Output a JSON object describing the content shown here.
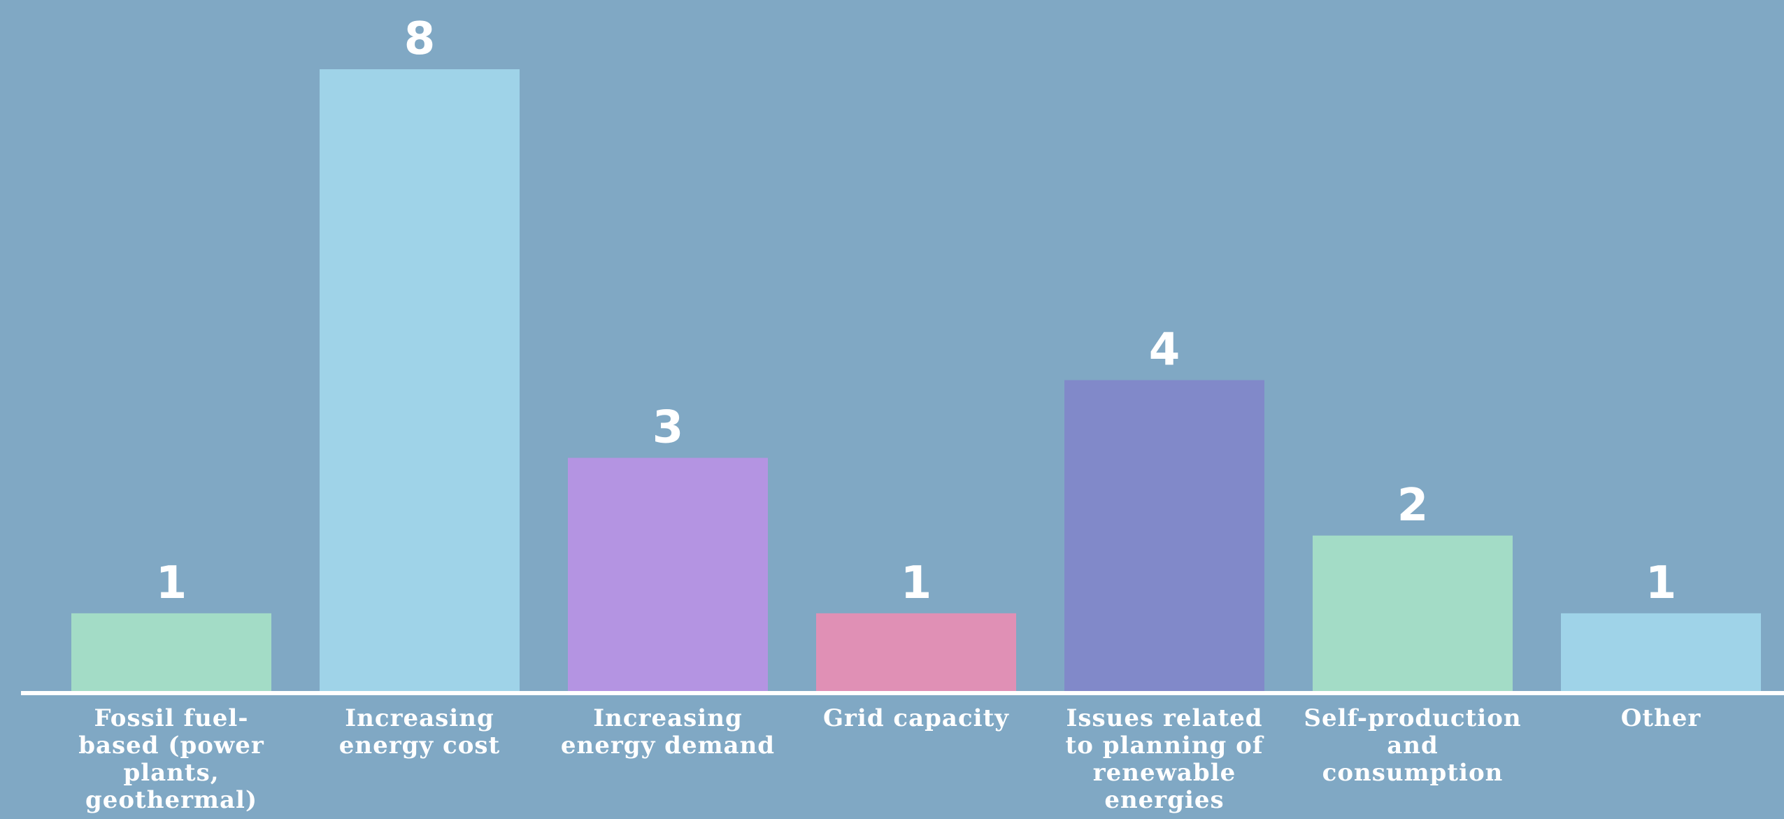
{
  "chart_data": {
    "type": "bar",
    "categories": [
      [
        "Fossil fuel-",
        "based (power",
        "plants,",
        "geothermal)"
      ],
      [
        "Increasing",
        "energy cost"
      ],
      [
        "Increasing",
        "energy demand"
      ],
      [
        "Grid capacity"
      ],
      [
        "Issues related",
        "to planning of",
        "renewable",
        "energies"
      ],
      [
        "Self-production",
        "and",
        "consumption"
      ],
      [
        "Other"
      ]
    ],
    "values": [
      1,
      8,
      3,
      1,
      4,
      2,
      1
    ],
    "colors": [
      "#a3dcc6",
      "#9fd3e8",
      "#b494e2",
      "#e090b5",
      "#8189c9",
      "#a3dcc6",
      "#9fd3e8"
    ],
    "ylim": [
      0,
      8
    ],
    "grid": false,
    "title": "",
    "xlabel": "",
    "ylabel": "",
    "axis_color": "#ffffff",
    "label_color": "#ffffff"
  }
}
